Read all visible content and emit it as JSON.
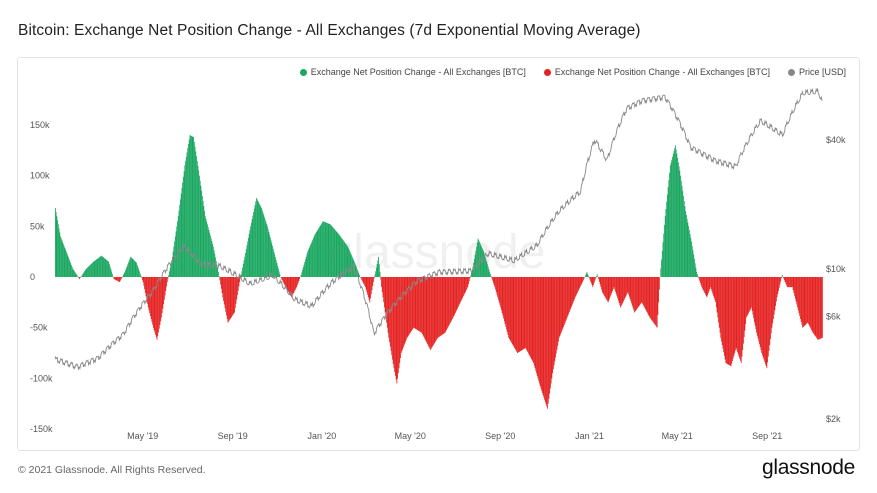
{
  "page": {
    "title": "Bitcoin: Exchange Net Position Change - All Exchanges (7d Exponential Moving Average)",
    "copyright": "© 2021 Glassnode. All Rights Reserved.",
    "logo": "glassnode",
    "watermark": "glassnode"
  },
  "legend": [
    {
      "label": "Exchange Net Position Change - All Exchanges [BTC]",
      "color": "#1aa760"
    },
    {
      "label": "Exchange Net Position Change - All Exchanges [BTC]",
      "color": "#e52222"
    },
    {
      "label": "Price [USD]",
      "color": "#888888"
    }
  ],
  "chart_data": {
    "type": "bar",
    "x_axis": {
      "type": "date",
      "range": [
        "2019-01-01",
        "2021-11-15"
      ],
      "ticks": [
        "May '19",
        "Sep '19",
        "Jan '20",
        "May '20",
        "Sep '20",
        "Jan '21",
        "May '21",
        "Sep '21"
      ]
    },
    "y_left": {
      "ylim": [
        -150000,
        150000
      ],
      "ticks": [
        "-150k",
        "-100k",
        "-50k",
        "0",
        "50k",
        "100k",
        "150k"
      ]
    },
    "y_right": {
      "scale": "log",
      "ylim": [
        2000,
        65000
      ],
      "ticks": [
        "$2k",
        "$6k",
        "$10k",
        "$40k"
      ]
    },
    "grid": false,
    "legend_position": "top-right",
    "series": [
      {
        "name": "Exchange Net Position Change - All Exchanges [BTC]",
        "axis": "left",
        "color_positive": "#1aa760",
        "color_negative": "#e52222",
        "points": [
          [
            "2019-01-01",
            68000
          ],
          [
            "2019-01-08",
            40000
          ],
          [
            "2019-01-16",
            25000
          ],
          [
            "2019-01-25",
            8000
          ],
          [
            "2019-02-03",
            -2000
          ],
          [
            "2019-02-12",
            8000
          ],
          [
            "2019-02-22",
            15000
          ],
          [
            "2019-03-05",
            21000
          ],
          [
            "2019-03-15",
            15000
          ],
          [
            "2019-03-22",
            -2000
          ],
          [
            "2019-03-30",
            -5000
          ],
          [
            "2019-04-06",
            5000
          ],
          [
            "2019-04-14",
            20000
          ],
          [
            "2019-04-22",
            14000
          ],
          [
            "2019-05-01",
            -5000
          ],
          [
            "2019-05-08",
            -30000
          ],
          [
            "2019-05-15",
            -50000
          ],
          [
            "2019-05-20",
            -62000
          ],
          [
            "2019-05-26",
            -40000
          ],
          [
            "2019-06-03",
            -5000
          ],
          [
            "2019-06-10",
            20000
          ],
          [
            "2019-06-18",
            60000
          ],
          [
            "2019-06-27",
            110000
          ],
          [
            "2019-07-04",
            140000
          ],
          [
            "2019-07-09",
            138000
          ],
          [
            "2019-07-16",
            105000
          ],
          [
            "2019-07-25",
            60000
          ],
          [
            "2019-08-05",
            30000
          ],
          [
            "2019-08-12",
            5000
          ],
          [
            "2019-08-18",
            -20000
          ],
          [
            "2019-08-25",
            -45000
          ],
          [
            "2019-09-03",
            -35000
          ],
          [
            "2019-09-10",
            -5000
          ],
          [
            "2019-09-17",
            20000
          ],
          [
            "2019-09-25",
            50000
          ],
          [
            "2019-10-03",
            78000
          ],
          [
            "2019-10-10",
            68000
          ],
          [
            "2019-10-18",
            50000
          ],
          [
            "2019-10-27",
            25000
          ],
          [
            "2019-11-05",
            0
          ],
          [
            "2019-11-12",
            -10000
          ],
          [
            "2019-11-20",
            -20000
          ],
          [
            "2019-11-27",
            -10000
          ],
          [
            "2019-12-03",
            2000
          ],
          [
            "2019-12-12",
            25000
          ],
          [
            "2019-12-22",
            42000
          ],
          [
            "2020-01-02",
            55000
          ],
          [
            "2020-01-12",
            52000
          ],
          [
            "2020-01-24",
            42000
          ],
          [
            "2020-02-05",
            30000
          ],
          [
            "2020-02-14",
            15000
          ],
          [
            "2020-02-22",
            0
          ],
          [
            "2020-02-29",
            -10000
          ],
          [
            "2020-03-06",
            -25000
          ],
          [
            "2020-03-11",
            -5000
          ],
          [
            "2020-03-18",
            20000
          ],
          [
            "2020-03-22",
            -10000
          ],
          [
            "2020-04-01",
            -60000
          ],
          [
            "2020-04-08",
            -90000
          ],
          [
            "2020-04-12",
            -105000
          ],
          [
            "2020-04-18",
            -75000
          ],
          [
            "2020-04-26",
            -60000
          ],
          [
            "2020-05-05",
            -50000
          ],
          [
            "2020-05-16",
            -55000
          ],
          [
            "2020-05-28",
            -72000
          ],
          [
            "2020-06-07",
            -60000
          ],
          [
            "2020-06-17",
            -55000
          ],
          [
            "2020-06-28",
            -40000
          ],
          [
            "2020-07-08",
            -25000
          ],
          [
            "2020-07-18",
            -10000
          ],
          [
            "2020-07-25",
            10000
          ],
          [
            "2020-08-01",
            38000
          ],
          [
            "2020-08-09",
            25000
          ],
          [
            "2020-08-17",
            5000
          ],
          [
            "2020-08-24",
            -10000
          ],
          [
            "2020-09-01",
            -30000
          ],
          [
            "2020-09-12",
            -60000
          ],
          [
            "2020-09-24",
            -75000
          ],
          [
            "2020-10-05",
            -70000
          ],
          [
            "2020-10-16",
            -85000
          ],
          [
            "2020-10-26",
            -110000
          ],
          [
            "2020-11-04",
            -130000
          ],
          [
            "2020-11-11",
            -95000
          ],
          [
            "2020-11-20",
            -60000
          ],
          [
            "2020-12-01",
            -40000
          ],
          [
            "2020-12-12",
            -20000
          ],
          [
            "2020-12-22",
            -5000
          ],
          [
            "2020-12-28",
            5000
          ],
          [
            "2021-01-05",
            -10000
          ],
          [
            "2021-01-11",
            3000
          ],
          [
            "2021-01-18",
            -15000
          ],
          [
            "2021-01-26",
            -25000
          ],
          [
            "2021-02-03",
            -10000
          ],
          [
            "2021-02-12",
            -30000
          ],
          [
            "2021-02-22",
            -15000
          ],
          [
            "2021-03-03",
            -35000
          ],
          [
            "2021-03-13",
            -25000
          ],
          [
            "2021-03-24",
            -40000
          ],
          [
            "2021-04-03",
            -50000
          ],
          [
            "2021-04-07",
            0
          ],
          [
            "2021-04-14",
            60000
          ],
          [
            "2021-04-21",
            110000
          ],
          [
            "2021-04-28",
            130000
          ],
          [
            "2021-05-04",
            105000
          ],
          [
            "2021-05-12",
            65000
          ],
          [
            "2021-05-20",
            35000
          ],
          [
            "2021-05-27",
            5000
          ],
          [
            "2021-06-03",
            -10000
          ],
          [
            "2021-06-10",
            -20000
          ],
          [
            "2021-06-15",
            -10000
          ],
          [
            "2021-06-22",
            -25000
          ],
          [
            "2021-06-29",
            -60000
          ],
          [
            "2021-07-06",
            -85000
          ],
          [
            "2021-07-13",
            -88000
          ],
          [
            "2021-07-20",
            -70000
          ],
          [
            "2021-07-27",
            -85000
          ],
          [
            "2021-08-03",
            -40000
          ],
          [
            "2021-08-10",
            -30000
          ],
          [
            "2021-08-17",
            -55000
          ],
          [
            "2021-08-24",
            -75000
          ],
          [
            "2021-08-31",
            -90000
          ],
          [
            "2021-09-07",
            -50000
          ],
          [
            "2021-09-14",
            -20000
          ],
          [
            "2021-09-21",
            2000
          ],
          [
            "2021-09-28",
            -10000
          ],
          [
            "2021-10-05",
            -10000
          ],
          [
            "2021-10-12",
            -30000
          ],
          [
            "2021-10-19",
            -50000
          ],
          [
            "2021-10-26",
            -45000
          ],
          [
            "2021-11-02",
            -55000
          ],
          [
            "2021-11-09",
            -62000
          ],
          [
            "2021-11-15",
            -60000
          ]
        ]
      },
      {
        "name": "Price [USD]",
        "axis": "right",
        "color": "#888888",
        "points": [
          [
            "2019-01-01",
            3800
          ],
          [
            "2019-02-01",
            3500
          ],
          [
            "2019-03-01",
            3850
          ],
          [
            "2019-04-05",
            5000
          ],
          [
            "2019-05-15",
            7900
          ],
          [
            "2019-06-26",
            12800
          ],
          [
            "2019-07-20",
            10500
          ],
          [
            "2019-08-15",
            10300
          ],
          [
            "2019-09-25",
            8500
          ],
          [
            "2019-10-26",
            9300
          ],
          [
            "2019-11-25",
            7200
          ],
          [
            "2019-12-18",
            6700
          ],
          [
            "2020-01-15",
            8700
          ],
          [
            "2020-02-13",
            10300
          ],
          [
            "2020-03-12",
            5000
          ],
          [
            "2020-04-10",
            6900
          ],
          [
            "2020-05-10",
            8800
          ],
          [
            "2020-06-10",
            9700
          ],
          [
            "2020-07-25",
            9800
          ],
          [
            "2020-08-15",
            11800
          ],
          [
            "2020-09-20",
            10900
          ],
          [
            "2020-10-21",
            12800
          ],
          [
            "2020-11-20",
            18500
          ],
          [
            "2020-12-20",
            23000
          ],
          [
            "2021-01-08",
            40000
          ],
          [
            "2021-01-25",
            32000
          ],
          [
            "2021-02-21",
            56000
          ],
          [
            "2021-03-14",
            61000
          ],
          [
            "2021-04-14",
            63500
          ],
          [
            "2021-05-19",
            37000
          ],
          [
            "2021-06-22",
            32000
          ],
          [
            "2021-07-20",
            30000
          ],
          [
            "2021-08-23",
            49000
          ],
          [
            "2021-09-22",
            42000
          ],
          [
            "2021-10-20",
            66000
          ],
          [
            "2021-11-10",
            67000
          ],
          [
            "2021-11-15",
            60000
          ]
        ]
      }
    ]
  }
}
